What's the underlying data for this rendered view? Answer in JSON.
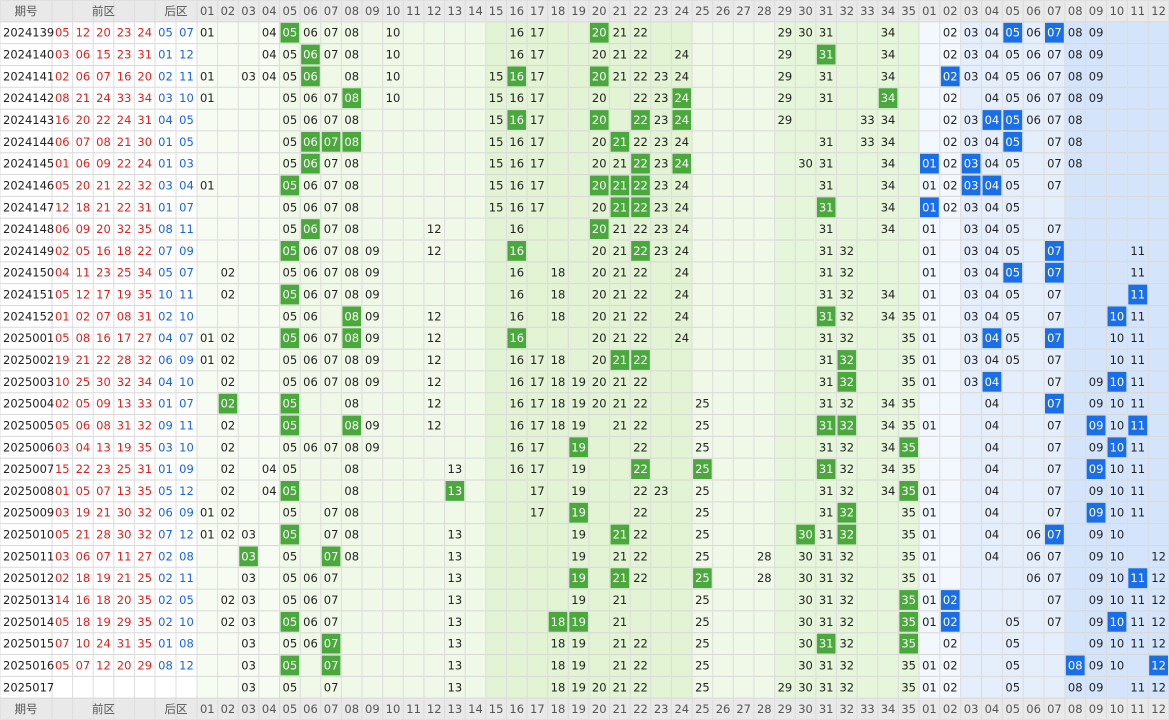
{
  "header": {
    "period": "期号",
    "front": "前区",
    "back": "后区",
    "front_columns": [
      "01",
      "02",
      "03",
      "04",
      "05",
      "06",
      "07",
      "08",
      "09",
      "10",
      "11",
      "12",
      "13",
      "14",
      "15",
      "16",
      "17",
      "18",
      "19",
      "20",
      "21",
      "22",
      "23",
      "24",
      "25",
      "26",
      "27",
      "28",
      "29",
      "30",
      "31",
      "32",
      "33",
      "34",
      "35"
    ],
    "back_columns": [
      "01",
      "02",
      "03",
      "04",
      "05",
      "06",
      "07",
      "08",
      "09",
      "10",
      "11",
      "12"
    ]
  },
  "rows": [
    {
      "period": "2024139",
      "front": [
        "05",
        "12",
        "20",
        "23",
        "24"
      ],
      "back": [
        "05",
        "07"
      ],
      "front_cells": [
        "01",
        "04",
        "05",
        "06",
        "07",
        "08",
        "10",
        "16",
        "17",
        "20",
        "21",
        "22",
        "29",
        "30",
        "31",
        "34"
      ],
      "back_cells": [
        "02",
        "03",
        "04",
        "05",
        "06",
        "07",
        "08",
        "09"
      ]
    },
    {
      "period": "2024140",
      "front": [
        "03",
        "06",
        "15",
        "23",
        "31"
      ],
      "back": [
        "01",
        "12"
      ],
      "front_cells": [
        "04",
        "05",
        "06",
        "07",
        "08",
        "10",
        "16",
        "17",
        "20",
        "21",
        "22",
        "24",
        "29",
        "31",
        "34"
      ],
      "back_cells": [
        "02",
        "03",
        "04",
        "05",
        "06",
        "07",
        "08",
        "09"
      ]
    },
    {
      "period": "2024141",
      "front": [
        "02",
        "06",
        "07",
        "16",
        "20"
      ],
      "back": [
        "02",
        "11"
      ],
      "front_cells": [
        "01",
        "03",
        "04",
        "05",
        "06",
        "08",
        "10",
        "15",
        "16",
        "17",
        "20",
        "21",
        "22",
        "23",
        "24",
        "29",
        "31",
        "34"
      ],
      "back_cells": [
        "02",
        "03",
        "04",
        "05",
        "06",
        "07",
        "08",
        "09"
      ]
    },
    {
      "period": "2024142",
      "front": [
        "08",
        "21",
        "24",
        "33",
        "34"
      ],
      "back": [
        "03",
        "10"
      ],
      "front_cells": [
        "01",
        "05",
        "06",
        "07",
        "08",
        "10",
        "15",
        "16",
        "17",
        "20",
        "22",
        "23",
        "24",
        "29",
        "31",
        "34"
      ],
      "back_cells": [
        "02",
        "04",
        "05",
        "06",
        "07",
        "08",
        "09"
      ]
    },
    {
      "period": "2024143",
      "front": [
        "16",
        "20",
        "22",
        "24",
        "31"
      ],
      "back": [
        "04",
        "05"
      ],
      "front_cells": [
        "05",
        "06",
        "07",
        "08",
        "15",
        "16",
        "17",
        "20",
        "22",
        "23",
        "24",
        "29",
        "33",
        "34"
      ],
      "back_cells": [
        "02",
        "03",
        "04",
        "05",
        "06",
        "07",
        "08"
      ]
    },
    {
      "period": "2024144",
      "front": [
        "06",
        "07",
        "08",
        "21",
        "30"
      ],
      "back": [
        "01",
        "05"
      ],
      "front_cells": [
        "05",
        "06",
        "07",
        "08",
        "15",
        "16",
        "17",
        "20",
        "21",
        "22",
        "23",
        "24",
        "31",
        "33",
        "34"
      ],
      "back_cells": [
        "02",
        "03",
        "04",
        "05",
        "07",
        "08"
      ]
    },
    {
      "period": "2024145",
      "front": [
        "01",
        "06",
        "09",
        "22",
        "24"
      ],
      "back": [
        "01",
        "03"
      ],
      "front_cells": [
        "05",
        "06",
        "07",
        "08",
        "15",
        "16",
        "17",
        "20",
        "21",
        "22",
        "23",
        "24",
        "30",
        "31",
        "34"
      ],
      "back_cells": [
        "01",
        "02",
        "03",
        "04",
        "05",
        "07",
        "08"
      ]
    },
    {
      "period": "2024146",
      "front": [
        "05",
        "20",
        "21",
        "22",
        "32"
      ],
      "back": [
        "03",
        "04"
      ],
      "front_cells": [
        "01",
        "05",
        "06",
        "07",
        "08",
        "15",
        "16",
        "17",
        "20",
        "21",
        "22",
        "23",
        "24",
        "31",
        "34"
      ],
      "back_cells": [
        "01",
        "02",
        "03",
        "04",
        "05",
        "07"
      ]
    },
    {
      "period": "2024147",
      "front": [
        "12",
        "18",
        "21",
        "22",
        "31"
      ],
      "back": [
        "01",
        "07"
      ],
      "front_cells": [
        "05",
        "06",
        "07",
        "08",
        "15",
        "16",
        "17",
        "20",
        "21",
        "22",
        "23",
        "24",
        "31",
        "34"
      ],
      "back_cells": [
        "01",
        "02",
        "03",
        "04",
        "05"
      ]
    },
    {
      "period": "2024148",
      "front": [
        "06",
        "09",
        "20",
        "32",
        "35"
      ],
      "back": [
        "08",
        "11"
      ],
      "front_cells": [
        "05",
        "06",
        "07",
        "08",
        "12",
        "16",
        "20",
        "21",
        "22",
        "23",
        "24",
        "31",
        "34"
      ],
      "back_cells": [
        "01",
        "03",
        "04",
        "05",
        "07"
      ]
    },
    {
      "period": "2024149",
      "front": [
        "02",
        "05",
        "16",
        "18",
        "22"
      ],
      "back": [
        "07",
        "09"
      ],
      "front_cells": [
        "05",
        "06",
        "07",
        "08",
        "09",
        "12",
        "16",
        "20",
        "21",
        "22",
        "23",
        "24",
        "31",
        "32"
      ],
      "back_cells": [
        "01",
        "03",
        "04",
        "05",
        "07",
        "11"
      ]
    },
    {
      "period": "2024150",
      "front": [
        "04",
        "11",
        "23",
        "25",
        "34"
      ],
      "back": [
        "05",
        "07"
      ],
      "front_cells": [
        "02",
        "05",
        "06",
        "07",
        "08",
        "09",
        "16",
        "18",
        "20",
        "21",
        "22",
        "24",
        "31",
        "32"
      ],
      "back_cells": [
        "01",
        "03",
        "04",
        "05",
        "07",
        "11"
      ]
    },
    {
      "period": "2024151",
      "front": [
        "05",
        "12",
        "17",
        "19",
        "35"
      ],
      "back": [
        "10",
        "11"
      ],
      "front_cells": [
        "02",
        "05",
        "06",
        "07",
        "08",
        "09",
        "16",
        "18",
        "20",
        "21",
        "22",
        "24",
        "31",
        "32",
        "34"
      ],
      "back_cells": [
        "01",
        "03",
        "04",
        "05",
        "07",
        "11"
      ]
    },
    {
      "period": "2024152",
      "front": [
        "01",
        "02",
        "07",
        "08",
        "31"
      ],
      "back": [
        "02",
        "10"
      ],
      "front_cells": [
        "05",
        "06",
        "08",
        "09",
        "12",
        "16",
        "18",
        "20",
        "21",
        "22",
        "24",
        "31",
        "32",
        "34",
        "35"
      ],
      "back_cells": [
        "01",
        "03",
        "04",
        "05",
        "07",
        "10",
        "11"
      ]
    },
    {
      "period": "2025001",
      "front": [
        "05",
        "08",
        "16",
        "17",
        "27"
      ],
      "back": [
        "04",
        "07"
      ],
      "front_cells": [
        "01",
        "02",
        "05",
        "06",
        "07",
        "08",
        "09",
        "12",
        "16",
        "20",
        "21",
        "22",
        "24",
        "31",
        "32",
        "35"
      ],
      "back_cells": [
        "01",
        "03",
        "04",
        "05",
        "07",
        "10",
        "11"
      ]
    },
    {
      "period": "2025002",
      "front": [
        "19",
        "21",
        "22",
        "28",
        "32"
      ],
      "back": [
        "06",
        "09"
      ],
      "front_cells": [
        "01",
        "02",
        "05",
        "06",
        "07",
        "08",
        "09",
        "12",
        "16",
        "17",
        "18",
        "20",
        "21",
        "22",
        "31",
        "32",
        "35"
      ],
      "back_cells": [
        "01",
        "03",
        "04",
        "05",
        "07",
        "10",
        "11"
      ]
    },
    {
      "period": "2025003",
      "front": [
        "10",
        "25",
        "30",
        "32",
        "34"
      ],
      "back": [
        "04",
        "10"
      ],
      "front_cells": [
        "02",
        "05",
        "06",
        "07",
        "08",
        "09",
        "12",
        "16",
        "17",
        "18",
        "19",
        "20",
        "21",
        "22",
        "31",
        "32",
        "35"
      ],
      "back_cells": [
        "01",
        "03",
        "04",
        "07",
        "09",
        "10",
        "11"
      ]
    },
    {
      "period": "2025004",
      "front": [
        "02",
        "05",
        "09",
        "13",
        "33"
      ],
      "back": [
        "01",
        "07"
      ],
      "front_cells": [
        "02",
        "05",
        "08",
        "12",
        "16",
        "17",
        "18",
        "19",
        "20",
        "21",
        "22",
        "25",
        "31",
        "32",
        "34",
        "35"
      ],
      "back_cells": [
        "04",
        "07",
        "09",
        "10",
        "11"
      ]
    },
    {
      "period": "2025005",
      "front": [
        "05",
        "06",
        "08",
        "31",
        "32"
      ],
      "back": [
        "09",
        "11"
      ],
      "front_cells": [
        "02",
        "05",
        "08",
        "09",
        "12",
        "16",
        "17",
        "18",
        "19",
        "21",
        "22",
        "25",
        "31",
        "32",
        "34",
        "35"
      ],
      "back_cells": [
        "01",
        "04",
        "07",
        "09",
        "10",
        "11"
      ]
    },
    {
      "period": "2025006",
      "front": [
        "03",
        "04",
        "13",
        "19",
        "35"
      ],
      "back": [
        "03",
        "10"
      ],
      "front_cells": [
        "02",
        "05",
        "06",
        "07",
        "08",
        "09",
        "16",
        "17",
        "19",
        "22",
        "25",
        "31",
        "32",
        "34",
        "35"
      ],
      "back_cells": [
        "04",
        "07",
        "09",
        "10",
        "11"
      ]
    },
    {
      "period": "2025007",
      "front": [
        "15",
        "22",
        "23",
        "25",
        "31"
      ],
      "back": [
        "01",
        "09"
      ],
      "front_cells": [
        "02",
        "04",
        "05",
        "08",
        "13",
        "16",
        "17",
        "19",
        "22",
        "25",
        "31",
        "32",
        "34",
        "35"
      ],
      "back_cells": [
        "04",
        "07",
        "09",
        "10",
        "11"
      ]
    },
    {
      "period": "2025008",
      "front": [
        "01",
        "05",
        "07",
        "13",
        "35"
      ],
      "back": [
        "05",
        "12"
      ],
      "front_cells": [
        "02",
        "04",
        "05",
        "08",
        "13",
        "17",
        "19",
        "22",
        "23",
        "25",
        "31",
        "32",
        "34",
        "35"
      ],
      "back_cells": [
        "01",
        "04",
        "07",
        "09",
        "10",
        "11"
      ]
    },
    {
      "period": "2025009",
      "front": [
        "03",
        "19",
        "21",
        "30",
        "32"
      ],
      "back": [
        "06",
        "09"
      ],
      "front_cells": [
        "01",
        "02",
        "05",
        "07",
        "08",
        "17",
        "19",
        "22",
        "25",
        "31",
        "32",
        "35"
      ],
      "back_cells": [
        "01",
        "04",
        "07",
        "09",
        "10",
        "11"
      ]
    },
    {
      "period": "2025010",
      "front": [
        "05",
        "21",
        "28",
        "30",
        "32"
      ],
      "back": [
        "07",
        "12"
      ],
      "front_cells": [
        "01",
        "02",
        "03",
        "05",
        "07",
        "08",
        "13",
        "19",
        "21",
        "22",
        "25",
        "30",
        "31",
        "32",
        "35"
      ],
      "back_cells": [
        "01",
        "04",
        "06",
        "07",
        "09",
        "10"
      ]
    },
    {
      "period": "2025011",
      "front": [
        "03",
        "06",
        "07",
        "11",
        "27"
      ],
      "back": [
        "02",
        "08"
      ],
      "front_cells": [
        "03",
        "05",
        "07",
        "08",
        "13",
        "19",
        "21",
        "22",
        "25",
        "28",
        "30",
        "31",
        "32",
        "35"
      ],
      "back_cells": [
        "01",
        "04",
        "06",
        "07",
        "09",
        "10",
        "12"
      ]
    },
    {
      "period": "2025012",
      "front": [
        "02",
        "18",
        "19",
        "21",
        "25"
      ],
      "back": [
        "02",
        "11"
      ],
      "front_cells": [
        "03",
        "05",
        "06",
        "07",
        "13",
        "19",
        "21",
        "22",
        "25",
        "28",
        "30",
        "31",
        "32",
        "35"
      ],
      "back_cells": [
        "01",
        "06",
        "07",
        "09",
        "10",
        "11",
        "12"
      ]
    },
    {
      "period": "2025013",
      "front": [
        "14",
        "16",
        "18",
        "20",
        "35"
      ],
      "back": [
        "02",
        "05"
      ],
      "front_cells": [
        "02",
        "03",
        "05",
        "06",
        "07",
        "13",
        "19",
        "21",
        "25",
        "30",
        "31",
        "32",
        "35"
      ],
      "back_cells": [
        "01",
        "02",
        "07",
        "09",
        "10",
        "11",
        "12"
      ]
    },
    {
      "period": "2025014",
      "front": [
        "05",
        "18",
        "19",
        "29",
        "35"
      ],
      "back": [
        "02",
        "10"
      ],
      "front_cells": [
        "02",
        "03",
        "05",
        "06",
        "07",
        "13",
        "18",
        "19",
        "21",
        "25",
        "30",
        "31",
        "32",
        "35"
      ],
      "back_cells": [
        "01",
        "02",
        "05",
        "07",
        "09",
        "10",
        "11",
        "12"
      ]
    },
    {
      "period": "2025015",
      "front": [
        "07",
        "10",
        "24",
        "31",
        "35"
      ],
      "back": [
        "01",
        "08"
      ],
      "front_cells": [
        "03",
        "05",
        "06",
        "07",
        "13",
        "18",
        "19",
        "21",
        "22",
        "25",
        "30",
        "31",
        "32",
        "35"
      ],
      "back_cells": [
        "02",
        "05",
        "09",
        "10",
        "11",
        "12"
      ]
    },
    {
      "period": "2025016",
      "front": [
        "05",
        "07",
        "12",
        "20",
        "29"
      ],
      "back": [
        "08",
        "12"
      ],
      "front_cells": [
        "03",
        "05",
        "07",
        "13",
        "18",
        "19",
        "21",
        "22",
        "25",
        "30",
        "31",
        "32",
        "35"
      ],
      "back_cells": [
        "01",
        "02",
        "05",
        "08",
        "09",
        "10",
        "12"
      ]
    },
    {
      "period": "2025017",
      "front": [],
      "back": [],
      "front_cells": [
        "03",
        "05",
        "07",
        "13",
        "18",
        "19",
        "20",
        "21",
        "22",
        "25",
        "29",
        "30",
        "31",
        "32",
        "35"
      ],
      "back_cells": [
        "01",
        "02",
        "05",
        "08",
        "09",
        "11",
        "12"
      ]
    }
  ]
}
